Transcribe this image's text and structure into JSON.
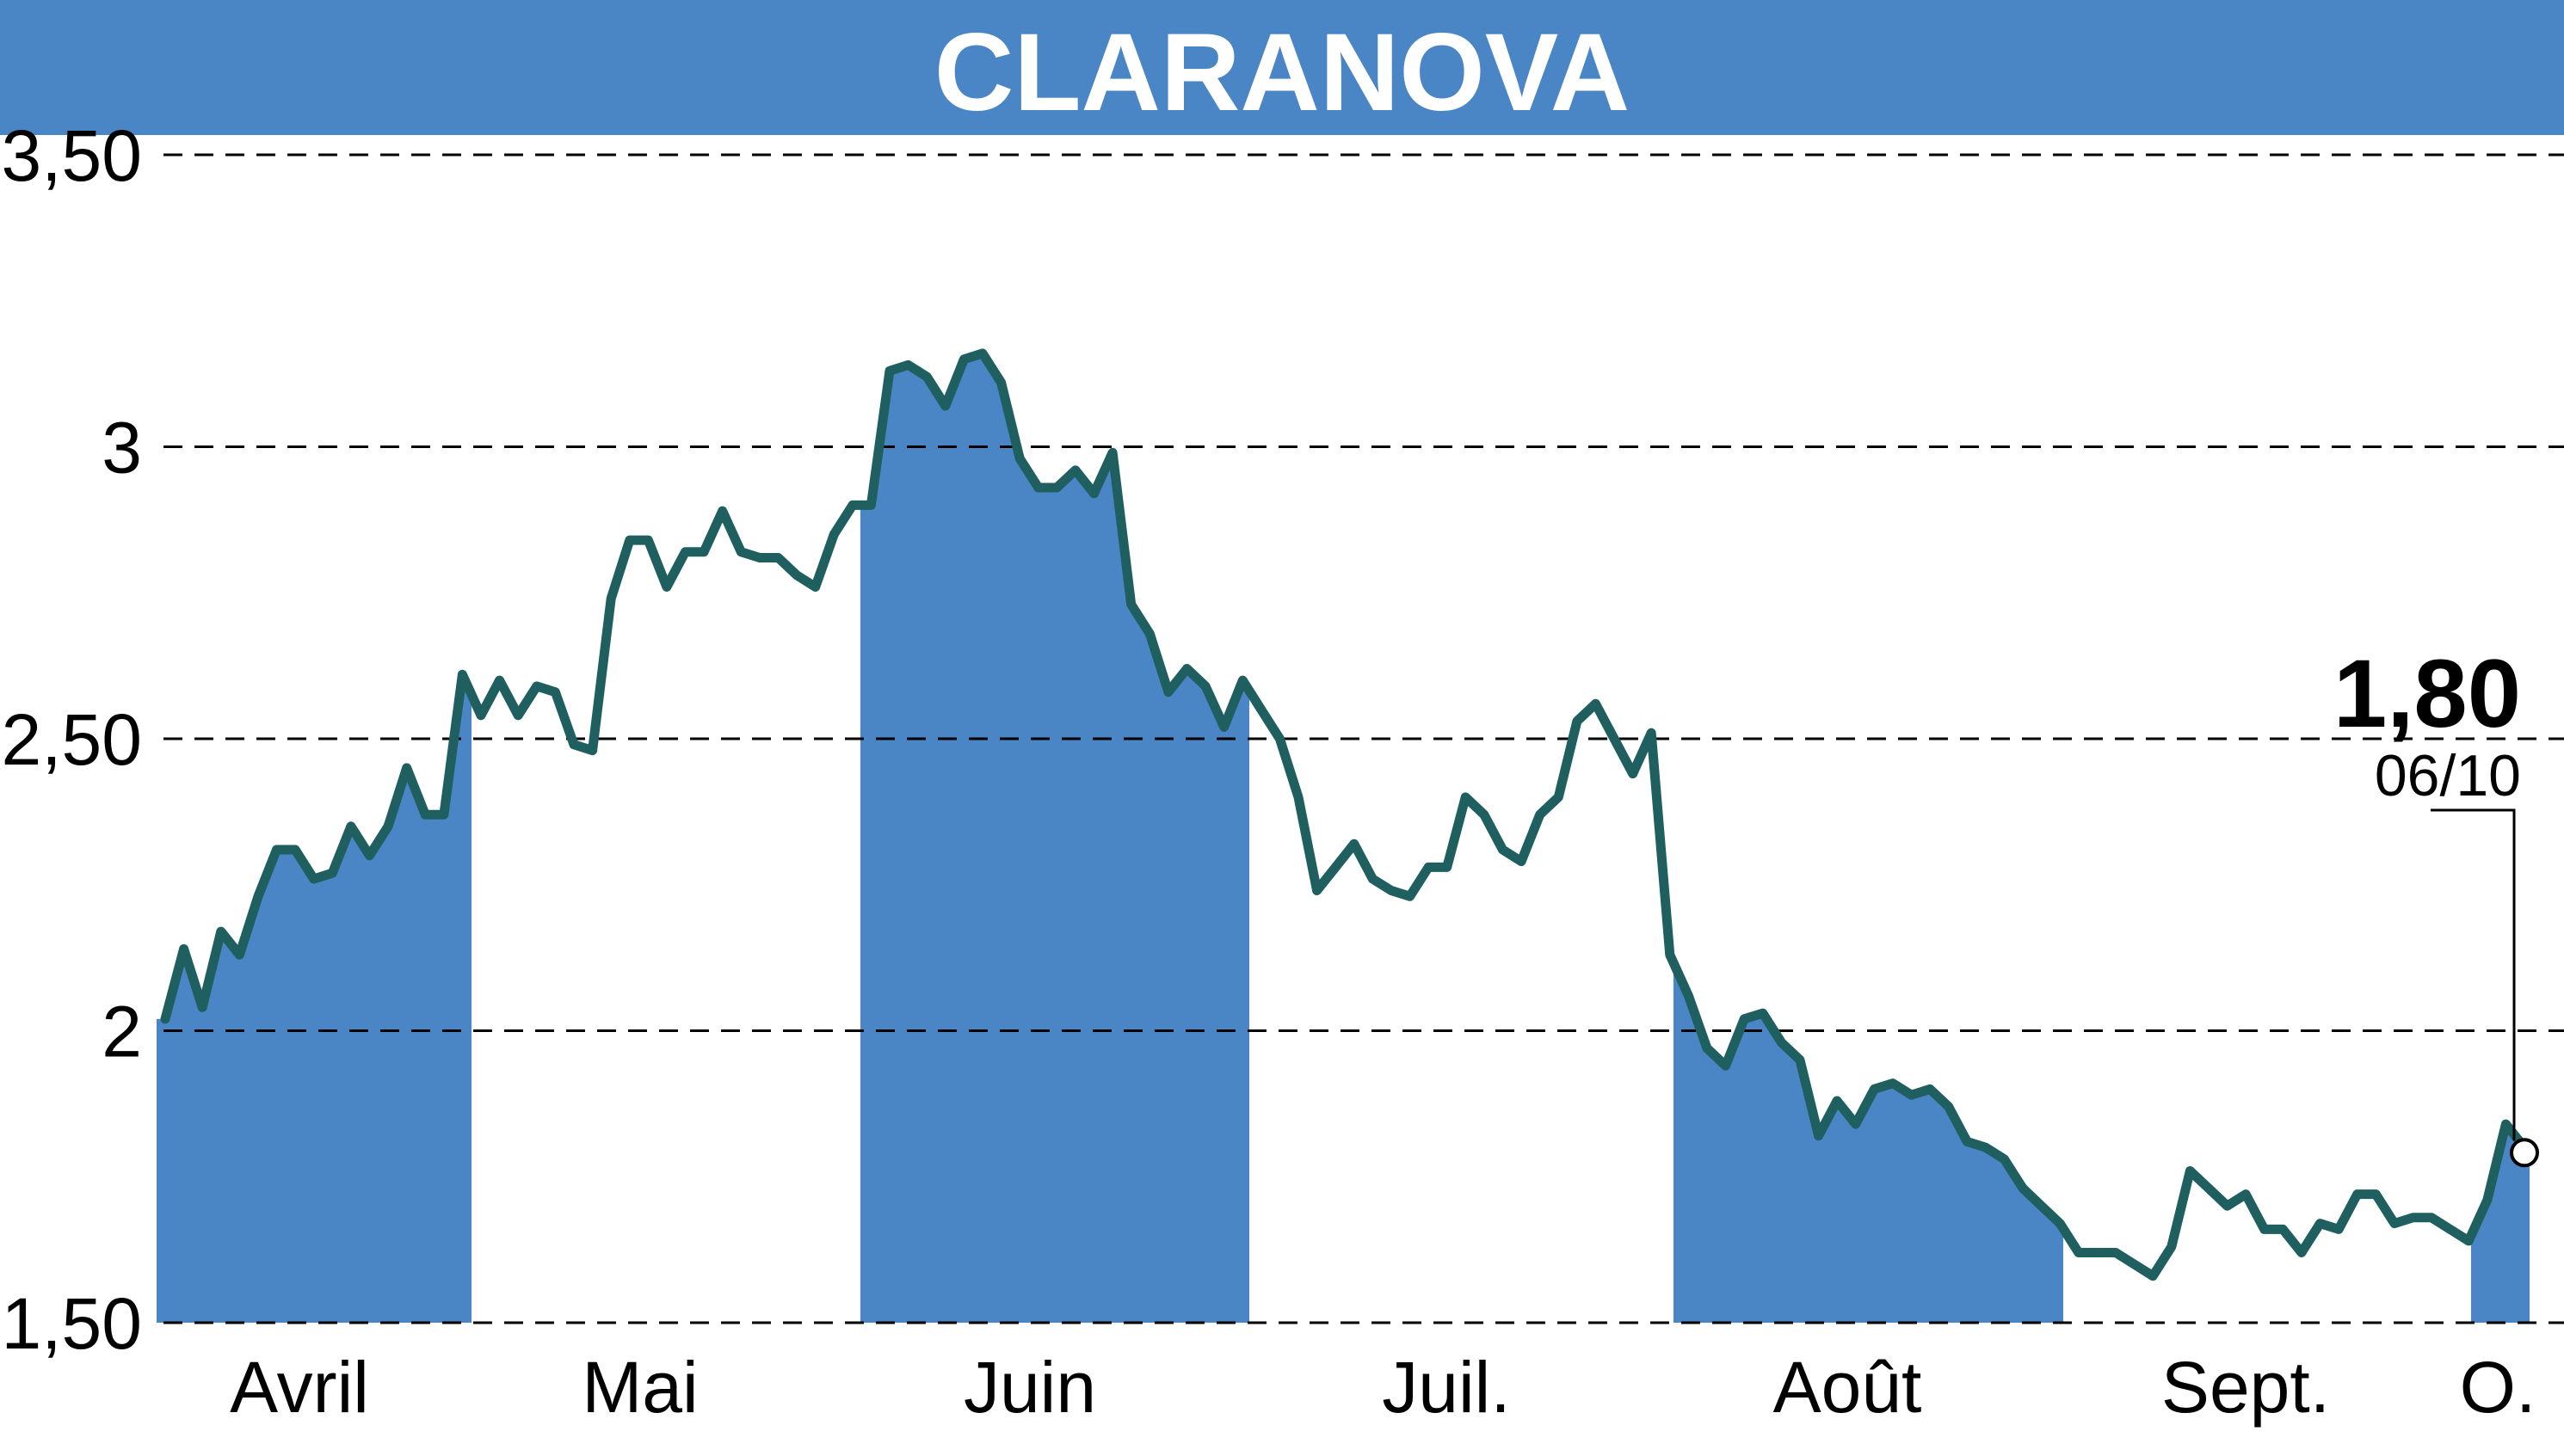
{
  "header": {
    "title": "CLARANOVA"
  },
  "colors": {
    "header_bg": "#4a86c5",
    "band": "#4a86c5",
    "line": "#1f5f5f",
    "grid": "#000000",
    "text": "#000000"
  },
  "chart_data": {
    "type": "line",
    "title": "CLARANOVA",
    "xlabel": "",
    "ylabel": "",
    "ylim": [
      1.5,
      3.5
    ],
    "yticks": [
      {
        "value": 3.5,
        "label": "3,50"
      },
      {
        "value": 3.0,
        "label": "3"
      },
      {
        "value": 2.5,
        "label": "2,50"
      },
      {
        "value": 2.0,
        "label": "2"
      },
      {
        "value": 1.5,
        "label": "1,50"
      }
    ],
    "grid": true,
    "months": [
      {
        "label": "Avril",
        "start_day": 0,
        "end_day": 22,
        "shaded": true
      },
      {
        "label": "Mai",
        "start_day": 22,
        "end_day": 49,
        "shaded": false
      },
      {
        "label": "Juin",
        "start_day": 49,
        "end_day": 76,
        "shaded": true
      },
      {
        "label": "Juil.",
        "start_day": 76,
        "end_day": 106,
        "shaded": false
      },
      {
        "label": "Août",
        "start_day": 106,
        "end_day": 133,
        "shaded": true
      },
      {
        "label": "Sept.",
        "start_day": 133,
        "end_day": 161,
        "shaded": false
      },
      {
        "label": "O.",
        "start_day": 161,
        "end_day": 165,
        "shaded": true
      }
    ],
    "total_days": 165,
    "series": [
      {
        "values": [
          2.02,
          2.14,
          2.04,
          2.17,
          2.13,
          2.23,
          2.31,
          2.31,
          2.26,
          2.27,
          2.35,
          2.3,
          2.35,
          2.45,
          2.37,
          2.37,
          2.61,
          2.54,
          2.6,
          2.54,
          2.59,
          2.58,
          2.49,
          2.48,
          2.74,
          2.84,
          2.84,
          2.76,
          2.82,
          2.82,
          2.89,
          2.82,
          2.81,
          2.81,
          2.78,
          2.76,
          2.85,
          2.9,
          2.9,
          3.13,
          3.14,
          3.12,
          3.07,
          3.15,
          3.16,
          3.11,
          2.98,
          2.93,
          2.93,
          2.96,
          2.92,
          2.99,
          2.73,
          2.68,
          2.58,
          2.62,
          2.59,
          2.52,
          2.6,
          2.55,
          2.5,
          2.4,
          2.24,
          2.28,
          2.32,
          2.26,
          2.24,
          2.23,
          2.28,
          2.28,
          2.4,
          2.37,
          2.31,
          2.29,
          2.37,
          2.4,
          2.53,
          2.56,
          2.5,
          2.44,
          2.51,
          2.13,
          2.06,
          1.97,
          1.94,
          2.02,
          2.03,
          1.98,
          1.95,
          1.82,
          1.88,
          1.84,
          1.9,
          1.91,
          1.89,
          1.9,
          1.87,
          1.81,
          1.8,
          1.78,
          1.73,
          1.7,
          1.67,
          1.62,
          1.62,
          1.62,
          1.6,
          1.58,
          1.63,
          1.76,
          1.73,
          1.7,
          1.72,
          1.66,
          1.66,
          1.62,
          1.67,
          1.66,
          1.72,
          1.72,
          1.67,
          1.68,
          1.68,
          1.66,
          1.64,
          1.71,
          1.84,
          1.8
        ]
      }
    ],
    "last": {
      "value_label": "1,80",
      "date_label": "06/10"
    }
  }
}
